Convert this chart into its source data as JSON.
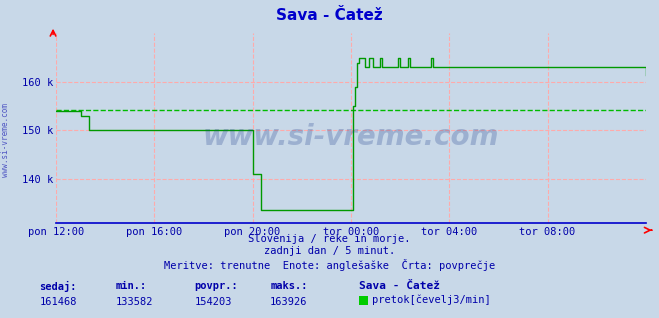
{
  "title": "Sava - Čatež",
  "title_color": "#0000cc",
  "bg_color": "#c8d8e8",
  "plot_bg_color": "#c8d8e8",
  "grid_color": "#ffaaaa",
  "line_color": "#009900",
  "avg_line_color": "#00bb00",
  "avg_value": 154203,
  "ymin": 131000,
  "ymax": 170000,
  "yticks": [
    140000,
    150000,
    160000
  ],
  "ytick_labels": [
    "140 k",
    "150 k",
    "160 k"
  ],
  "text_color": "#0000aa",
  "watermark": "www.si-vreme.com",
  "watermark_color": "#1a3a8a",
  "watermark_alpha": 0.25,
  "sidebar_text": "www.si-vreme.com",
  "subtitle1": "Slovenija / reke in morje.",
  "subtitle2": "zadnji dan / 5 minut.",
  "subtitle3": "Meritve: trenutne  Enote: anglešaške  Črta: povprečje",
  "stat_labels": [
    "sedaj:",
    "min.:",
    "povpr.:",
    "maks.:"
  ],
  "stat_values": [
    "161468",
    "133582",
    "154203",
    "163926"
  ],
  "legend_title": "Sava - Čatež",
  "legend_label": "pretok[čevelj3/min]",
  "legend_color": "#00cc00",
  "xtick_labels": [
    "pon 12:00",
    "pon 16:00",
    "pon 20:00",
    "tor 00:00",
    "tor 04:00",
    "tor 08:00"
  ],
  "xtick_positions": [
    0,
    48,
    96,
    144,
    192,
    240
  ],
  "total_points": 289,
  "flow_data": [
    154000,
    154000,
    154000,
    154000,
    154000,
    154000,
    154000,
    154000,
    154000,
    154000,
    154000,
    154000,
    153000,
    153000,
    153000,
    153000,
    150000,
    150000,
    150000,
    150000,
    150000,
    150000,
    150000,
    150000,
    150000,
    150000,
    150000,
    150000,
    150000,
    150000,
    150000,
    150000,
    150000,
    150000,
    150000,
    150000,
    150000,
    150000,
    150000,
    150000,
    150000,
    150000,
    150000,
    150000,
    150000,
    150000,
    150000,
    150000,
    150000,
    150000,
    150000,
    150000,
    150000,
    150000,
    150000,
    150000,
    150000,
    150000,
    150000,
    150000,
    150000,
    150000,
    150000,
    150000,
    150000,
    150000,
    150000,
    150000,
    150000,
    150000,
    150000,
    150000,
    150000,
    150000,
    150000,
    150000,
    150000,
    150000,
    150000,
    150000,
    150000,
    150000,
    150000,
    150000,
    150000,
    150000,
    150000,
    150000,
    150000,
    150000,
    150000,
    150000,
    150000,
    150000,
    150000,
    150000,
    141000,
    141000,
    141000,
    141000,
    133582,
    133582,
    133582,
    133582,
    133582,
    133582,
    133582,
    133582,
    133582,
    133582,
    133582,
    133582,
    133582,
    133582,
    133582,
    133582,
    133582,
    133582,
    133582,
    133582,
    133582,
    133582,
    133582,
    133582,
    133582,
    133582,
    133582,
    133582,
    133582,
    133582,
    133582,
    133582,
    133582,
    133582,
    133582,
    133582,
    133582,
    133582,
    133582,
    133582,
    133582,
    133582,
    133582,
    133582,
    133582,
    155000,
    159000,
    163926,
    165000,
    165000,
    165000,
    163000,
    163000,
    165000,
    165000,
    163000,
    163000,
    163000,
    165000,
    163000,
    163000,
    163000,
    163000,
    163000,
    163000,
    163000,
    163000,
    165000,
    163000,
    163000,
    163000,
    163000,
    165000,
    163000,
    163000,
    163000,
    163000,
    163000,
    163000,
    163000,
    163000,
    163000,
    163000,
    165000,
    163000,
    163000,
    163000,
    163000,
    163000,
    163000,
    163000,
    163000,
    163000,
    163000,
    163000,
    163000,
    163000,
    163000,
    163000,
    163000,
    163000,
    163000,
    163000,
    163000,
    163000,
    163000,
    163000,
    163000,
    163000,
    163000,
    163000,
    163000,
    163000,
    163000,
    163000,
    163000,
    163000,
    163000,
    163000,
    163000,
    163000,
    163000,
    163000,
    163000,
    163000,
    163000,
    163000,
    163000,
    163000,
    163000,
    163000,
    163000,
    163000,
    163000,
    163000,
    163000,
    163000,
    163000,
    163000,
    163000,
    163000,
    163000,
    163000,
    163000,
    163000,
    163000,
    163000,
    163000,
    163000,
    163000,
    163000,
    163000,
    163000,
    163000,
    163000,
    163000,
    163000,
    163000,
    163000,
    163000,
    163000,
    163000,
    163000,
    163000,
    163000,
    163000,
    163000,
    163000,
    163000,
    163000,
    163000,
    163000,
    163000,
    163000,
    163000,
    163000,
    163000,
    163000,
    163000,
    163000,
    163000,
    163000,
    163000,
    163000,
    163000,
    163000,
    163000,
    163000,
    161468
  ]
}
